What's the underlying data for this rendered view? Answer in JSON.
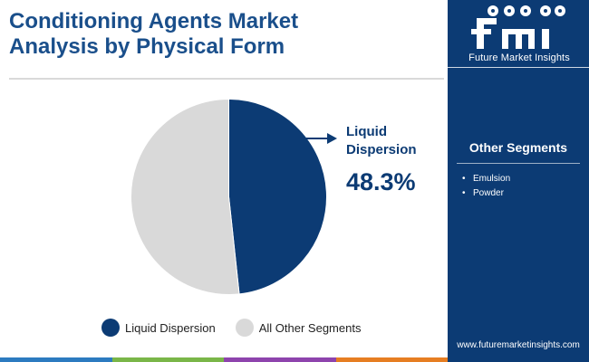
{
  "header": {
    "title": "Conditioning Agents Market\nAnalysis by Physical Form"
  },
  "brand": {
    "logo_text": "Future Market Insights",
    "website": "www.futuremarketinsights.com",
    "panel_color": "#0c3b74",
    "accent_color": "#1a4f8b"
  },
  "side_panel": {
    "heading": "Other Segments",
    "items": [
      "Emulsion",
      "Powder"
    ]
  },
  "callout": {
    "label_line1": "Liquid",
    "label_line2": "Dispersion",
    "value": "48.3%"
  },
  "legend": [
    {
      "label": "Liquid Dispersion",
      "color": "#0c3b74"
    },
    {
      "label": "All Other Segments",
      "color": "#d9d9d9"
    }
  ],
  "bottom_bar_colors": [
    "#2c7bc0",
    "#7ab648",
    "#8e44ad",
    "#e67e22"
  ],
  "chart_data": {
    "type": "pie",
    "slices": [
      {
        "label": "Liquid Dispersion",
        "value": 48.3,
        "color": "#0c3b74"
      },
      {
        "label": "All Other Segments",
        "value": 51.7,
        "color": "#d9d9d9"
      }
    ],
    "start_angle": "12 o'clock",
    "direction": "clockwise"
  }
}
